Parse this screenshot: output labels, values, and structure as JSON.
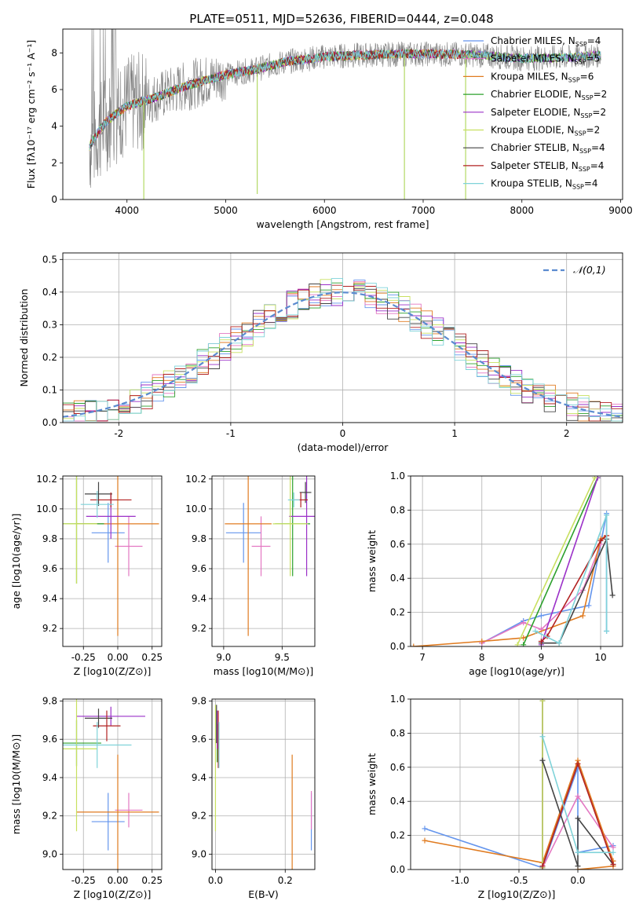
{
  "title": "PLATE=0511, MJD=52636, FIBERID=0444, z=0.048",
  "models": [
    {
      "name": "Chabrier MILES",
      "nssp": "4",
      "color": "#6495ed"
    },
    {
      "name": "Salpeter MILES",
      "nssp": "5",
      "color": "#e377c2"
    },
    {
      "name": "Kroupa MILES",
      "nssp": "6",
      "color": "#e07b20"
    },
    {
      "name": "Chabrier ELODIE",
      "nssp": "2",
      "color": "#2ca02c"
    },
    {
      "name": "Salpeter ELODIE",
      "nssp": "2",
      "color": "#9b30c8"
    },
    {
      "name": "Kroupa ELODIE",
      "nssp": "2",
      "color": "#c8e060"
    },
    {
      "name": "Chabrier STELIB",
      "nssp": "4",
      "color": "#444444"
    },
    {
      "name": "Salpeter STELIB",
      "nssp": "4",
      "color": "#b22222"
    },
    {
      "name": "Kroupa STELIB",
      "nssp": "4",
      "color": "#7fd3d9"
    }
  ],
  "nssp_prefix": "N",
  "nssp_sub": "SSP",
  "chart_data": [
    {
      "id": "spectrum",
      "type": "line",
      "title": "PLATE=0511, MJD=52636, FIBERID=0444, z=0.048",
      "xlabel": "wavelength [Angstrom, rest frame]",
      "ylabel": "Flux [fλ10⁻¹⁷ erg cm⁻² s⁻¹ A⁻¹]",
      "xlim": [
        3350,
        9020
      ],
      "ylim": [
        0,
        9.3
      ],
      "xticks": [
        4000,
        5000,
        6000,
        7000,
        8000,
        9000
      ],
      "yticks": [
        0,
        2,
        4,
        6,
        8
      ],
      "data_color": "#808080",
      "continuum": [
        [
          3620,
          2.9
        ],
        [
          3700,
          3.6
        ],
        [
          3800,
          4.3
        ],
        [
          4000,
          5.1
        ],
        [
          4300,
          5.6
        ],
        [
          4600,
          6.2
        ],
        [
          5000,
          6.8
        ],
        [
          5300,
          7.1
        ],
        [
          5600,
          7.5
        ],
        [
          6000,
          7.8
        ],
        [
          6500,
          7.9
        ],
        [
          7000,
          7.95
        ],
        [
          7500,
          7.9
        ],
        [
          8000,
          7.7
        ],
        [
          8500,
          7.75
        ],
        [
          8800,
          7.9
        ]
      ],
      "dips": [
        {
          "x": 4170,
          "y": 0
        },
        {
          "x": 5320,
          "y": 0.3
        },
        {
          "x": 6810,
          "y": 0
        },
        {
          "x": 7430,
          "y": 0
        }
      ]
    },
    {
      "id": "residuals",
      "type": "histogram",
      "xlabel": "(data-model)/error",
      "ylabel": "Normed distribution",
      "xlim": [
        -2.5,
        2.5
      ],
      "ylim": [
        0,
        0.52
      ],
      "xticks": [
        -2,
        -1,
        0,
        1,
        2
      ],
      "yticks": [
        0.0,
        0.1,
        0.2,
        0.3,
        0.4,
        0.5
      ],
      "legend": "𝒩(0,1)",
      "legend_color": "#5b8bd0",
      "bin_width": 0.1,
      "bin_start": -2.5,
      "series_heights": [
        [
          0.02,
          0.02,
          0.03,
          0.04,
          0.05,
          0.05,
          0.06,
          0.07,
          0.08,
          0.1,
          0.11,
          0.13,
          0.14,
          0.16,
          0.18,
          0.2,
          0.22,
          0.24,
          0.27,
          0.29,
          0.31,
          0.33,
          0.35,
          0.37,
          0.38,
          0.39,
          0.38,
          0.4,
          0.37,
          0.38,
          0.4,
          0.42,
          0.4,
          0.39,
          0.37,
          0.36,
          0.35,
          0.33,
          0.31,
          0.29,
          0.27,
          0.25,
          0.23,
          0.21,
          0.18,
          0.17,
          0.15,
          0.13,
          0.11,
          0.1
        ],
        [
          0.02,
          0.02,
          0.03,
          0.04,
          0.05,
          0.06,
          0.06,
          0.07,
          0.09,
          0.1,
          0.11,
          0.13,
          0.15,
          0.16,
          0.18,
          0.21,
          0.23,
          0.24,
          0.27,
          0.29,
          0.32,
          0.34,
          0.36,
          0.38,
          0.41,
          0.43,
          0.42,
          0.39,
          0.37,
          0.4,
          0.41,
          0.4,
          0.43,
          0.38,
          0.36,
          0.34,
          0.31,
          0.31,
          0.28,
          0.27,
          0.25,
          0.23,
          0.22,
          0.19,
          0.18,
          0.16,
          0.14,
          0.12,
          0.1,
          0.09
        ]
      ]
    },
    {
      "id": "z-age",
      "type": "errorbar",
      "xlabel": "Z [log10(Z/Z⊙)]",
      "ylabel": "age  [log10(age/yr)]",
      "xlim": [
        -0.4,
        0.32
      ],
      "ylim": [
        9.08,
        10.22
      ],
      "xticks": [
        -0.25,
        0.0,
        0.25
      ],
      "yticks": [
        9.2,
        9.4,
        9.6,
        9.8,
        10.0,
        10.2
      ],
      "points": [
        {
          "x": -0.07,
          "y": 9.84,
          "xerr": 0.12,
          "yerr": 0.2
        },
        {
          "x": 0.08,
          "y": 9.75,
          "xerr": 0.1,
          "yerr": 0.2
        },
        {
          "x": 0.0,
          "y": 9.9,
          "xerr": 0.3,
          "yerr": 0.75
        },
        {
          "x": -0.3,
          "y": 9.9,
          "xerr": 0.2,
          "yerr": 0.4
        },
        {
          "x": -0.05,
          "y": 9.95,
          "xerr": 0.18,
          "yerr": 0.15
        },
        {
          "x": -0.3,
          "y": 9.9,
          "xerr": 0.15,
          "yerr": 0.4
        },
        {
          "x": -0.14,
          "y": 10.1,
          "xerr": 0.1,
          "yerr": 0.08
        },
        {
          "x": -0.05,
          "y": 10.06,
          "xerr": 0.15,
          "yerr": 0.05
        },
        {
          "x": -0.15,
          "y": 10.03,
          "xerr": 0.12,
          "yerr": 0.09
        }
      ]
    },
    {
      "id": "mass-age",
      "type": "errorbar",
      "xlabel": "mass [log10(M/M⊙)]",
      "ylabel": "",
      "xlim": [
        8.9,
        9.78
      ],
      "ylim": [
        9.08,
        10.22
      ],
      "xticks": [
        9.0,
        9.5
      ],
      "yticks": [
        9.2,
        9.4,
        9.6,
        9.8,
        10.0,
        10.2
      ],
      "points": [
        {
          "x": 9.17,
          "y": 9.84,
          "xerr": 0.15,
          "yerr": 0.2
        },
        {
          "x": 9.32,
          "y": 9.75,
          "xerr": 0.08,
          "yerr": 0.2
        },
        {
          "x": 9.21,
          "y": 9.9,
          "xerr": 0.2,
          "yerr": 0.75
        },
        {
          "x": 9.59,
          "y": 9.9,
          "xerr": 0.15,
          "yerr": 0.35
        },
        {
          "x": 9.71,
          "y": 9.95,
          "xerr": 0.15,
          "yerr": 0.4
        },
        {
          "x": 9.57,
          "y": 9.9,
          "xerr": 0.15,
          "yerr": 0.35
        },
        {
          "x": 9.7,
          "y": 10.11,
          "xerr": 0.05,
          "yerr": 0.07
        },
        {
          "x": 9.66,
          "y": 10.06,
          "xerr": 0.06,
          "yerr": 0.05
        },
        {
          "x": 9.6,
          "y": 10.06,
          "xerr": 0.05,
          "yerr": 0.05
        }
      ]
    },
    {
      "id": "age-mw",
      "type": "line",
      "xlabel": "age  [log10(age/yr)]",
      "ylabel": "mass weight",
      "xlim": [
        6.8,
        10.37
      ],
      "ylim": [
        0,
        1
      ],
      "xticks": [
        7,
        8,
        9,
        10
      ],
      "yticks": [
        0.0,
        0.2,
        0.4,
        0.6,
        0.8,
        1.0
      ],
      "series": [
        {
          "points": [
            [
              8.0,
              0.02
            ],
            [
              8.7,
              0.15
            ],
            [
              9.0,
              0.18
            ],
            [
              9.8,
              0.24
            ],
            [
              10.1,
              0.78
            ],
            [
              10.1,
              0.09
            ]
          ]
        },
        {
          "points": [
            [
              8.0,
              0.02
            ],
            [
              8.7,
              0.14
            ],
            [
              9.0,
              0.1
            ],
            [
              9.7,
              0.33
            ],
            [
              10.0,
              0.6
            ]
          ]
        },
        {
          "points": [
            [
              6.85,
              0.0
            ],
            [
              8.0,
              0.03
            ],
            [
              8.7,
              0.05
            ],
            [
              9.7,
              0.18
            ],
            [
              10.0,
              0.63
            ],
            [
              10.1,
              0.65
            ]
          ]
        },
        {
          "points": [
            [
              8.7,
              0.01
            ],
            [
              9.95,
              0.99
            ]
          ]
        },
        {
          "points": [
            [
              9.0,
              0.01
            ],
            [
              9.95,
              0.99
            ]
          ]
        },
        {
          "points": [
            [
              8.6,
              0.01
            ],
            [
              9.9,
              0.99
            ]
          ]
        },
        {
          "points": [
            [
              9.0,
              0.02
            ],
            [
              9.3,
              0.02
            ],
            [
              10.1,
              0.63
            ],
            [
              10.2,
              0.3
            ]
          ]
        },
        {
          "points": [
            [
              9.0,
              0.03
            ],
            [
              9.1,
              0.06
            ],
            [
              10.0,
              0.62
            ],
            [
              10.1,
              0.65
            ]
          ]
        },
        {
          "points": [
            [
              8.9,
              0.09
            ],
            [
              9.3,
              0.02
            ],
            [
              10.1,
              0.77
            ],
            [
              10.1,
              0.09
            ]
          ]
        }
      ]
    },
    {
      "id": "z-mass",
      "type": "errorbar",
      "xlabel": "Z [log10(Z/Z⊙)]",
      "ylabel": "mass [log10(M/M⊙)]",
      "xlim": [
        -0.4,
        0.32
      ],
      "ylim": [
        8.92,
        9.81
      ],
      "xticks": [
        -0.25,
        0.0,
        0.25
      ],
      "yticks": [
        9.0,
        9.2,
        9.4,
        9.6,
        9.8
      ],
      "points": [
        {
          "x": -0.07,
          "y": 9.17,
          "xerr": 0.12,
          "yerr": 0.15
        },
        {
          "x": 0.08,
          "y": 9.23,
          "xerr": 0.1,
          "yerr": 0.09
        },
        {
          "x": 0.0,
          "y": 9.22,
          "xerr": 0.3,
          "yerr": 0.3
        },
        {
          "x": -0.3,
          "y": 9.58,
          "xerr": 0.18,
          "yerr": 0.12
        },
        {
          "x": -0.05,
          "y": 9.72,
          "xerr": 0.25,
          "yerr": 0.05
        },
        {
          "x": -0.3,
          "y": 9.55,
          "xerr": 0.15,
          "yerr": 0.43
        },
        {
          "x": -0.14,
          "y": 9.71,
          "xerr": 0.1,
          "yerr": 0.05
        },
        {
          "x": -0.08,
          "y": 9.67,
          "xerr": 0.1,
          "yerr": 0.08
        },
        {
          "x": -0.15,
          "y": 9.57,
          "xerr": 0.25,
          "yerr": 0.12
        }
      ]
    },
    {
      "id": "ebv-mass",
      "type": "errorbar",
      "xlabel": "E(B-V)",
      "ylabel": "",
      "xlim": [
        -0.01,
        0.285
      ],
      "ylim": [
        8.92,
        9.81
      ],
      "xticks": [
        0.0,
        0.2
      ],
      "yticks": [
        9.0,
        9.2,
        9.4,
        9.6,
        9.8
      ],
      "points": [
        {
          "x": 0.275,
          "y": 9.17,
          "xerr": 0.0,
          "yerr": 0.15
        },
        {
          "x": 0.275,
          "y": 9.23,
          "xerr": 0.0,
          "yerr": 0.1
        },
        {
          "x": 0.22,
          "y": 9.22,
          "xerr": 0.0,
          "yerr": 0.3
        },
        {
          "x": 0.005,
          "y": 9.58,
          "xerr": 0.0,
          "yerr": 0.1
        },
        {
          "x": 0.005,
          "y": 9.65,
          "xerr": 0.0,
          "yerr": 0.1
        },
        {
          "x": 0.0,
          "y": 9.45,
          "xerr": 0.0,
          "yerr": 0.33
        },
        {
          "x": 0.003,
          "y": 9.68,
          "xerr": 0.0,
          "yerr": 0.1
        },
        {
          "x": 0.008,
          "y": 9.6,
          "xerr": 0.0,
          "yerr": 0.15
        },
        {
          "x": 0.01,
          "y": 9.57,
          "xerr": 0.0,
          "yerr": 0.12
        }
      ]
    },
    {
      "id": "z-mw",
      "type": "line",
      "xlabel": "Z [log10(Z/Z⊙)]",
      "ylabel": "mass weight",
      "xlim": [
        -1.42,
        0.38
      ],
      "ylim": [
        0,
        1
      ],
      "xticks": [
        -1.0,
        -0.5,
        0.0
      ],
      "yticks": [
        0.0,
        0.2,
        0.4,
        0.6,
        0.8,
        1.0
      ],
      "series": [
        {
          "points": [
            [
              -1.3,
              0.24
            ],
            [
              -0.3,
              0.01
            ],
            [
              0.0,
              0.6
            ],
            [
              0.0,
              0.1
            ],
            [
              0.3,
              0.14
            ]
          ]
        },
        {
          "points": [
            [
              -0.3,
              0.01
            ],
            [
              0.0,
              0.43
            ],
            [
              0.3,
              0.13
            ]
          ]
        },
        {
          "points": [
            [
              -1.3,
              0.17
            ],
            [
              -0.3,
              0.04
            ],
            [
              0.0,
              0.64
            ],
            [
              0.3,
              0.05
            ],
            [
              0.3,
              0.02
            ],
            [
              0.0,
              0.0
            ]
          ]
        },
        {
          "points": [
            [
              -0.3,
              0.01
            ],
            [
              -0.3,
              0.99
            ]
          ]
        },
        {
          "points": [
            [
              -0.3,
              0.01
            ],
            [
              -0.3,
              0.99
            ]
          ]
        },
        {
          "points": [
            [
              -0.3,
              0.01
            ],
            [
              -0.3,
              0.99
            ]
          ]
        },
        {
          "points": [
            [
              -0.3,
              0.64
            ],
            [
              0.0,
              0.02
            ],
            [
              0.0,
              0.3
            ],
            [
              0.3,
              0.03
            ]
          ]
        },
        {
          "points": [
            [
              -0.3,
              0.02
            ],
            [
              0.0,
              0.62
            ],
            [
              0.3,
              0.03
            ]
          ]
        },
        {
          "points": [
            [
              -0.3,
              0.78
            ],
            [
              0.0,
              0.1
            ],
            [
              0.3,
              0.1
            ]
          ]
        }
      ]
    }
  ]
}
